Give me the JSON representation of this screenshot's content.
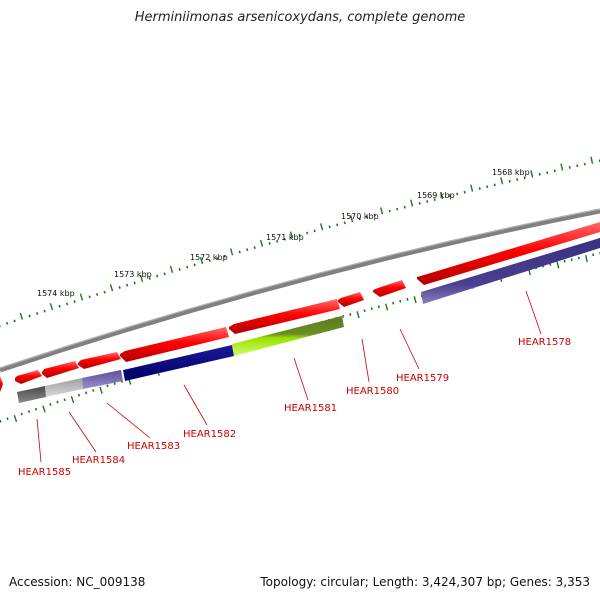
{
  "title": "Herminiimonas arsenicoxydans, complete genome",
  "footer": {
    "accession": "Accession: NC_009138",
    "summary": "Topology: circular; Length: 3,424,307 bp; Genes: 3,353"
  },
  "scale_labels": [
    "1574 kbp",
    "1573 kbp",
    "1572 kbp",
    "1571 kbp",
    "1570 kbp",
    "1569 kbp",
    "1568 kbp"
  ],
  "genes": [
    {
      "id": "HEAR1585",
      "color": "#606060"
    },
    {
      "id": "HEAR1584",
      "color": "#7b6fb0"
    },
    {
      "id": "HEAR1583",
      "color": "#000080"
    },
    {
      "id": "HEAR1582",
      "color": "#000080"
    },
    {
      "id": "HEAR1581",
      "color": "#8fd400"
    },
    {
      "id": "HEAR1580",
      "color": "#ff0000"
    },
    {
      "id": "HEAR1579",
      "color": "#ff0000"
    },
    {
      "id": "HEAR1578",
      "color": "#4a3f8f"
    }
  ],
  "colors": {
    "backbone": "#808080",
    "tick": "#1a7a1a",
    "cds": "#ff0000",
    "label": "#cc0000"
  }
}
